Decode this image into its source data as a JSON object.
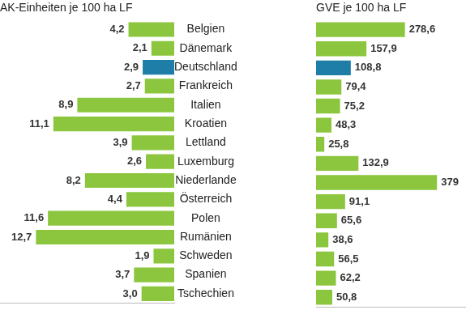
{
  "chart_data": [
    {
      "type": "bar",
      "title": "AK-Einheiten je 100 ha LF",
      "orientation": "horizontal",
      "categories": [
        "Belgien",
        "Dänemark",
        "Deutschland",
        "Frankreich",
        "Italien",
        "Kroatien",
        "Lettland",
        "Luxemburg",
        "Niederlande",
        "Österreich",
        "Polen",
        "Rumänien",
        "Schweden",
        "Spanien",
        "Tschechien"
      ],
      "values": [
        4.2,
        2.1,
        2.9,
        2.7,
        8.9,
        11.1,
        3.9,
        2.6,
        8.2,
        4.4,
        11.6,
        12.7,
        1.9,
        3.7,
        3.0
      ],
      "value_labels": [
        "4,2",
        "2,1",
        "2,9",
        "2,7",
        "8,9",
        "11,1",
        "3,9",
        "2,6",
        "8,2",
        "4,4",
        "11,6",
        "12,7",
        "1,9",
        "3,7",
        "3,0"
      ],
      "colors": [
        "#8cc63e",
        "#8cc63e",
        "#1f7ea8",
        "#8cc63e",
        "#8cc63e",
        "#8cc63e",
        "#8cc63e",
        "#8cc63e",
        "#8cc63e",
        "#8cc63e",
        "#8cc63e",
        "#8cc63e",
        "#8cc63e",
        "#8cc63e",
        "#8cc63e"
      ],
      "xlim": [
        0,
        16
      ],
      "data_labels": true,
      "tick_labels": "y",
      "grid": false
    },
    {
      "type": "bar",
      "title": "GVE je 100 ha LF",
      "orientation": "horizontal",
      "categories": [
        "Belgien",
        "Dänemark",
        "Deutschland",
        "Frankreich",
        "Italien",
        "Kroatien",
        "Lettland",
        "Luxemburg",
        "Niederlande",
        "Österreich",
        "Polen",
        "Rumänien",
        "Schweden",
        "Spanien",
        "Tschechien"
      ],
      "values": [
        278.6,
        157.9,
        108.8,
        79.4,
        75.2,
        48.3,
        25.8,
        132.9,
        379,
        91.1,
        65.6,
        38.6,
        56.5,
        62.2,
        50.8
      ],
      "value_labels": [
        "278,6",
        "157,9",
        "108,8",
        "79,4",
        "75,2",
        "48,3",
        "25,8",
        "132,9",
        "379",
        "91,1",
        "65,6",
        "38,6",
        "56,5",
        "62,2",
        "50,8"
      ],
      "colors": [
        "#8cc63e",
        "#8cc63e",
        "#1f7ea8",
        "#8cc63e",
        "#8cc63e",
        "#8cc63e",
        "#8cc63e",
        "#8cc63e",
        "#8cc63e",
        "#8cc63e",
        "#8cc63e",
        "#8cc63e",
        "#8cc63e",
        "#8cc63e",
        "#8cc63e"
      ],
      "xlim": [
        0,
        470
      ],
      "data_labels": true,
      "tick_labels": false,
      "grid": false
    }
  ]
}
